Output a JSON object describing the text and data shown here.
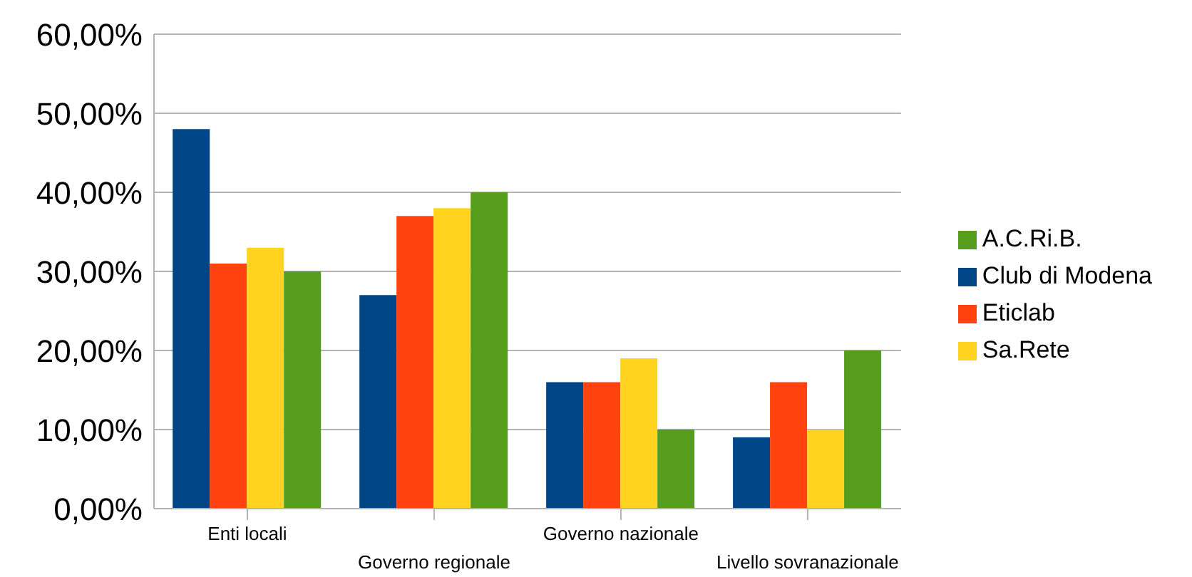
{
  "chart_data": {
    "type": "bar",
    "categories": [
      "Enti locali",
      "Governo regionale",
      "Governo nazionale",
      "Livello sovranazionale"
    ],
    "series": [
      {
        "name": "Club di Modena",
        "color": "#004586",
        "values": [
          48,
          27,
          16,
          9
        ]
      },
      {
        "name": "Eticlab",
        "color": "#ff420e",
        "values": [
          31,
          37,
          16,
          16
        ]
      },
      {
        "name": "Sa.Rete",
        "color": "#ffd320",
        "values": [
          33,
          38,
          19,
          10
        ]
      },
      {
        "name": "A.C.Ri.B.",
        "color": "#579d1c",
        "values": [
          30,
          40,
          10,
          20
        ]
      }
    ],
    "ylim": [
      0,
      60
    ],
    "yticks": [
      {
        "value": 0,
        "label": "0,00%"
      },
      {
        "value": 10,
        "label": "10,00%"
      },
      {
        "value": 20,
        "label": "20,00%"
      },
      {
        "value": 30,
        "label": "30,00%"
      },
      {
        "value": 40,
        "label": "40,00%"
      },
      {
        "value": 50,
        "label": "50,00%"
      },
      {
        "value": 60,
        "label": "60,00%"
      }
    ],
    "grid": "y",
    "legend": "right"
  }
}
